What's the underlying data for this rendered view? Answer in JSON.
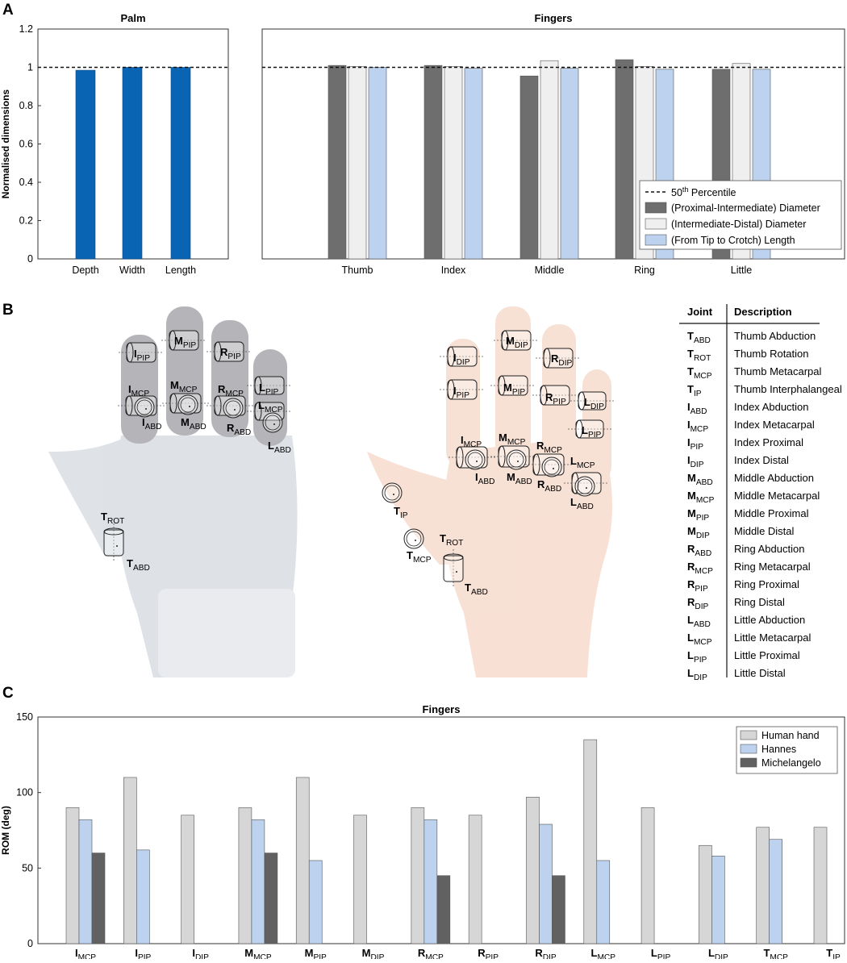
{
  "panels": {
    "a": {
      "letter": "A",
      "chart_data": [
        {
          "type": "bar",
          "title": "Palm",
          "ylabel": "Normalised dimensions",
          "ylim": [
            0,
            1.2
          ],
          "yticks": [
            "0",
            "0.2",
            "0.4",
            "0.6",
            "0.8",
            "1",
            "1.2"
          ],
          "categories": [
            "Depth",
            "Width",
            "Length"
          ],
          "values": [
            0.985,
            1.0,
            1.0
          ],
          "reference_line": 1.0,
          "color": "#0a64b4"
        },
        {
          "type": "bar",
          "title": "Fingers",
          "ylim": [
            0,
            1.2
          ],
          "categories": [
            "Thumb",
            "Index",
            "Middle",
            "Ring",
            "Little"
          ],
          "series": [
            {
              "name": "(Proximal-Intermediate) Diameter",
              "values": [
                1.01,
                1.01,
                0.955,
                1.04,
                0.99
              ],
              "color": "#6e6e6e"
            },
            {
              "name": "(Intermediate-Distal) Diameter",
              "values": [
                1.005,
                1.005,
                1.035,
                1.005,
                1.02
              ],
              "color": "#efefef"
            },
            {
              "name": "(From Tip to Crotch) Length",
              "values": [
                1.0,
                0.995,
                0.995,
                0.99,
                0.99
              ],
              "color": "#bcd2ee"
            }
          ],
          "reference_line": 1.0,
          "legend": {
            "placement": "bottom-right",
            "line_label": "50",
            "line_label_sup": "th",
            "line_label_rest": " Percentile"
          }
        }
      ]
    },
    "b": {
      "letter": "B",
      "left_labels": [
        {
          "b": "I",
          "s": "PIP"
        },
        {
          "b": "M",
          "s": "PIP"
        },
        {
          "b": "R",
          "s": "PIP"
        },
        {
          "b": "I",
          "s": "MCP"
        },
        {
          "b": "M",
          "s": "MCP"
        },
        {
          "b": "R",
          "s": "MCP"
        },
        {
          "b": "L",
          "s": "PIP"
        },
        {
          "b": "L",
          "s": "MCP"
        },
        {
          "b": "I",
          "s": "ABD"
        },
        {
          "b": "M",
          "s": "ABD"
        },
        {
          "b": "R",
          "s": "ABD"
        },
        {
          "b": "L",
          "s": "ABD"
        },
        {
          "b": "T",
          "s": "ROT"
        },
        {
          "b": "T",
          "s": "ABD"
        }
      ],
      "right_labels": [
        {
          "b": "M",
          "s": "DIP"
        },
        {
          "b": "I",
          "s": "DIP"
        },
        {
          "b": "R",
          "s": "DIP"
        },
        {
          "b": "I",
          "s": "PIP"
        },
        {
          "b": "M",
          "s": "PIP"
        },
        {
          "b": "R",
          "s": "PIP"
        },
        {
          "b": "L",
          "s": "DIP"
        },
        {
          "b": "L",
          "s": "PIP"
        },
        {
          "b": "I",
          "s": "MCP"
        },
        {
          "b": "M",
          "s": "MCP"
        },
        {
          "b": "R",
          "s": "MCP"
        },
        {
          "b": "L",
          "s": "MCP"
        },
        {
          "b": "I",
          "s": "ABD"
        },
        {
          "b": "M",
          "s": "ABD"
        },
        {
          "b": "R",
          "s": "ABD"
        },
        {
          "b": "L",
          "s": "ABD"
        },
        {
          "b": "T",
          "s": "IP"
        },
        {
          "b": "T",
          "s": "ROT"
        },
        {
          "b": "T",
          "s": "MCP"
        },
        {
          "b": "T",
          "s": "ABD"
        }
      ],
      "table": {
        "headers": [
          "Joint",
          "Description"
        ],
        "rows": [
          {
            "b": "T",
            "s": "ABD",
            "d": "Thumb Abduction"
          },
          {
            "b": "T",
            "s": "ROT",
            "d": "Thumb Rotation"
          },
          {
            "b": "T",
            "s": "MCP",
            "d": "Thumb Metacarpal"
          },
          {
            "b": "T",
            "s": "IP",
            "d": "Thumb Interphalangeal"
          },
          {
            "b": "I",
            "s": "ABD",
            "d": "Index Abduction"
          },
          {
            "b": "I",
            "s": "MCP",
            "d": "Index Metacarpal"
          },
          {
            "b": "I",
            "s": "PIP",
            "d": "Index Proximal"
          },
          {
            "b": "I",
            "s": "DIP",
            "d": "Index Distal"
          },
          {
            "b": "M",
            "s": "ABD",
            "d": "Middle Abduction"
          },
          {
            "b": "M",
            "s": "MCP",
            "d": "Middle Metacarpal"
          },
          {
            "b": "M",
            "s": "PIP",
            "d": "Middle Proximal"
          },
          {
            "b": "M",
            "s": "DIP",
            "d": "Middle Distal"
          },
          {
            "b": "R",
            "s": "ABD",
            "d": "Ring Abduction"
          },
          {
            "b": "R",
            "s": "MCP",
            "d": "Ring Metacarpal"
          },
          {
            "b": "R",
            "s": "PIP",
            "d": "Ring Proximal"
          },
          {
            "b": "R",
            "s": "DIP",
            "d": "Ring Distal"
          },
          {
            "b": "L",
            "s": "ABD",
            "d": "Little Abduction"
          },
          {
            "b": "L",
            "s": "MCP",
            "d": "Little Metacarpal"
          },
          {
            "b": "L",
            "s": "PIP",
            "d": "Little Proximal"
          },
          {
            "b": "L",
            "s": "DIP",
            "d": "Little Distal"
          }
        ]
      },
      "colors": {
        "left_hand": "#d9dde3",
        "right_hand": "#f7ddd0"
      }
    },
    "c": {
      "letter": "C",
      "chart_data": {
        "type": "bar",
        "title": "Fingers",
        "ylabel": "ROM (deg)",
        "ylim": [
          0,
          150
        ],
        "yticks": [
          "0",
          "50",
          "100",
          "150"
        ],
        "categories": [
          {
            "b": "I",
            "s": "MCP"
          },
          {
            "b": "I",
            "s": "PIP"
          },
          {
            "b": "I",
            "s": "DIP"
          },
          {
            "b": "M",
            "s": "MCP"
          },
          {
            "b": "M",
            "s": "PIP"
          },
          {
            "b": "M",
            "s": "DIP"
          },
          {
            "b": "R",
            "s": "MCP"
          },
          {
            "b": "R",
            "s": "PIP"
          },
          {
            "b": "R",
            "s": "DIP"
          },
          {
            "b": "L",
            "s": "MCP"
          },
          {
            "b": "L",
            "s": "PIP"
          },
          {
            "b": "L",
            "s": "DIP"
          },
          {
            "b": "T",
            "s": "MCP"
          },
          {
            "b": "T",
            "s": "IP"
          }
        ],
        "series": [
          {
            "name": "Human hand",
            "values": [
              90,
              110,
              85,
              90,
              110,
              85,
              90,
              85,
              97,
              135,
              90,
              65,
              77,
              77
            ],
            "color": "#d6d6d6"
          },
          {
            "name": "Hannes",
            "values": [
              82,
              62,
              null,
              82,
              55,
              null,
              82,
              null,
              79,
              55,
              null,
              58,
              69,
              null
            ],
            "color": "#bcd2ee"
          },
          {
            "name": "Michelangelo",
            "values": [
              60,
              null,
              null,
              60,
              null,
              null,
              45,
              null,
              45,
              null,
              null,
              null,
              null,
              null
            ],
            "color": "#616161"
          }
        ],
        "legend": {
          "placement": "top-right"
        }
      }
    }
  }
}
